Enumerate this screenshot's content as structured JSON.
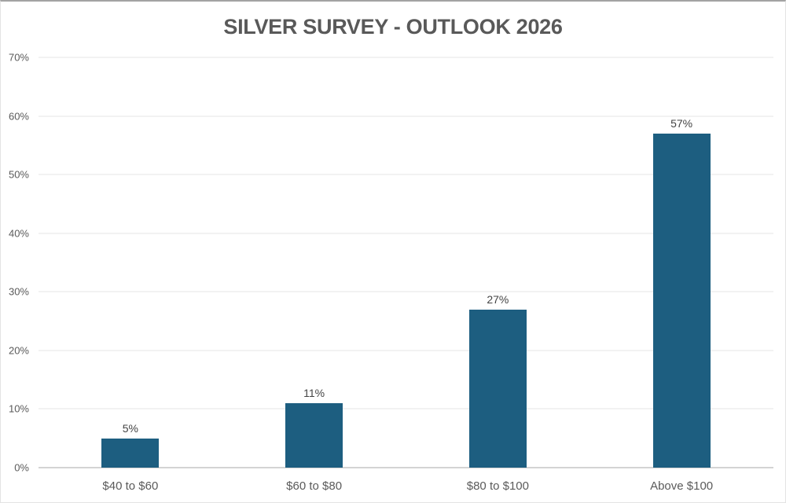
{
  "chart_data": {
    "type": "bar",
    "title": "SILVER SURVEY - OUTLOOK 2026",
    "categories": [
      "$40 to $60",
      "$60 to $80",
      "$80 to $100",
      "Above $100"
    ],
    "values": [
      5,
      11,
      27,
      57
    ],
    "value_labels": [
      "5%",
      "11%",
      "27%",
      "57%"
    ],
    "yticks": [
      "0%",
      "10%",
      "20%",
      "30%",
      "40%",
      "50%",
      "60%",
      "70%"
    ],
    "ytick_step": 10,
    "ylim": [
      0,
      70
    ],
    "xlabel": "",
    "ylabel": "",
    "grid": true,
    "legend": false,
    "bar_color": "#1d5e80",
    "gridline_color": "#e4e4e4",
    "baseline_color": "#d4d4d4",
    "axis_label_color": "#5a5a5a",
    "value_label_color": "#444444",
    "title_color": "#595959"
  }
}
